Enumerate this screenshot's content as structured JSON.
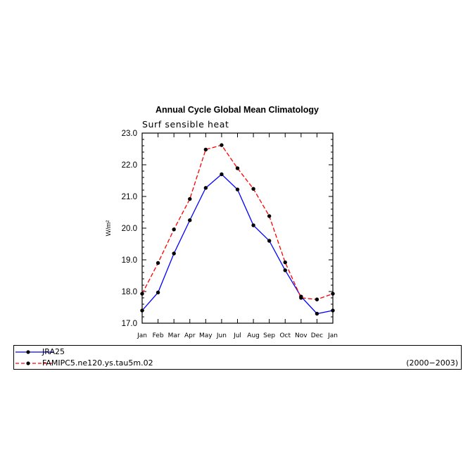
{
  "chart_data": {
    "type": "line",
    "title": "Annual Cycle Global Mean Climatology",
    "subtitle": "Surf sensible heat",
    "ylabel": "W/m²",
    "ylim": [
      17.0,
      23.0
    ],
    "yticks": [
      "17.0",
      "18.0",
      "19.0",
      "20.0",
      "21.0",
      "22.0",
      "23.0"
    ],
    "categories": [
      "Jan",
      "Feb",
      "Mar",
      "Apr",
      "May",
      "Jun",
      "Jul",
      "Aug",
      "Sep",
      "Oct",
      "Nov",
      "Dec",
      "Jan"
    ],
    "series": [
      {
        "name": "JRA25",
        "color": "#0000ff",
        "dash": "solid",
        "values": [
          17.4,
          17.97,
          19.2,
          20.25,
          21.27,
          21.7,
          21.22,
          20.09,
          19.6,
          18.67,
          17.84,
          17.3,
          17.4
        ]
      },
      {
        "name": "FAMIPC5.ne120.ys.tau5m.02",
        "color": "#ff0000",
        "dash": "dashed",
        "values": [
          17.93,
          18.9,
          19.96,
          20.92,
          22.48,
          22.62,
          21.89,
          21.24,
          20.38,
          18.92,
          17.8,
          17.75,
          17.93
        ]
      }
    ],
    "legend": {
      "placement": "below",
      "period": "(2000−2003)"
    }
  }
}
